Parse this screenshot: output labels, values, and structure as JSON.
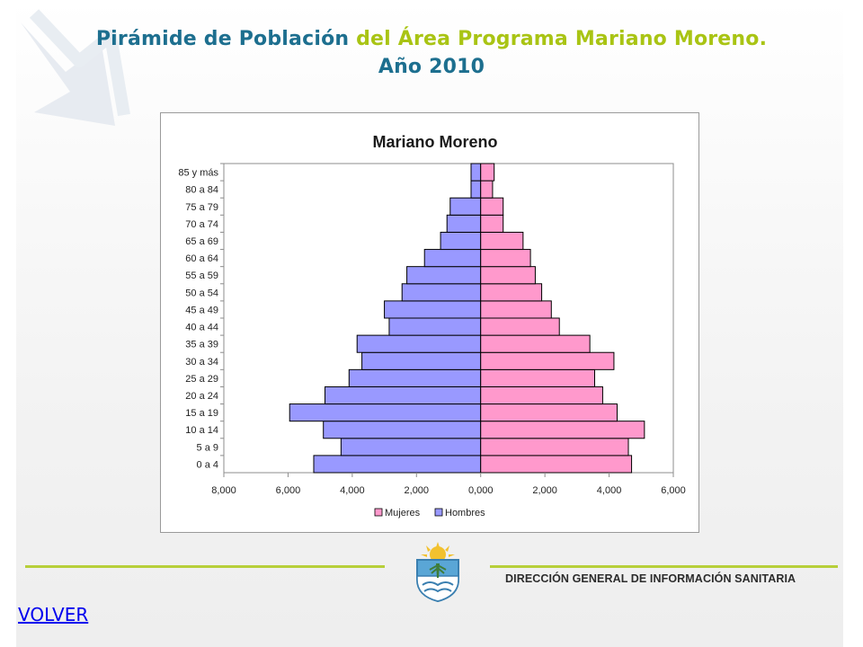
{
  "slide": {
    "title_part1": "Pirámide de Población",
    "title_part2": "del Área Programa Mariano Moreno.",
    "title_part3": "Año 2010",
    "footer_text": "DIRECCIÓN GENERAL DE INFORMACIÓN SANITARIA",
    "volver_label": "VOLVER"
  },
  "colors": {
    "title_blue": "#1d6f8f",
    "title_green": "#a9c414",
    "women_fill": "#ff99cc",
    "men_fill": "#9999ff",
    "footer_line": "#b7cf3a"
  },
  "chart_data": {
    "type": "bar",
    "orientation": "horizontal-population-pyramid",
    "title": "Mariano Moreno",
    "categories": [
      "0 a 4",
      "5 a 9",
      "10 a 14",
      "15 a 19",
      "20 a 24",
      "25 a 29",
      "30 a 34",
      "35 a 39",
      "40 a 44",
      "45 a 49",
      "50 a 54",
      "55 a 59",
      "60 a 64",
      "65 a 69",
      "70 a 74",
      "75 a 79",
      "80 a 84",
      "85 y más"
    ],
    "series": [
      {
        "name": "Mujeres",
        "color": "#ff99cc",
        "side": "right",
        "values": [
          4700,
          4600,
          5100,
          4250,
          3800,
          3550,
          4150,
          3400,
          2450,
          2200,
          1900,
          1700,
          1550,
          1320,
          700,
          700,
          370,
          420
        ]
      },
      {
        "name": "Hombres",
        "color": "#9999ff",
        "side": "left",
        "values": [
          5200,
          4350,
          4900,
          5950,
          4850,
          4100,
          3700,
          3850,
          2850,
          3000,
          2450,
          2300,
          1750,
          1250,
          1050,
          950,
          300,
          300
        ]
      }
    ],
    "xlim": [
      -8000,
      6000
    ],
    "xticks": [
      -8000,
      -6000,
      -4000,
      -2000,
      0,
      2000,
      4000,
      6000
    ],
    "xtick_labels": [
      "8,000",
      "6,000",
      "4,000",
      "2,000",
      "0,000",
      "2,000",
      "4,000",
      "6,000"
    ],
    "legend_position": "bottom",
    "grid": false
  }
}
